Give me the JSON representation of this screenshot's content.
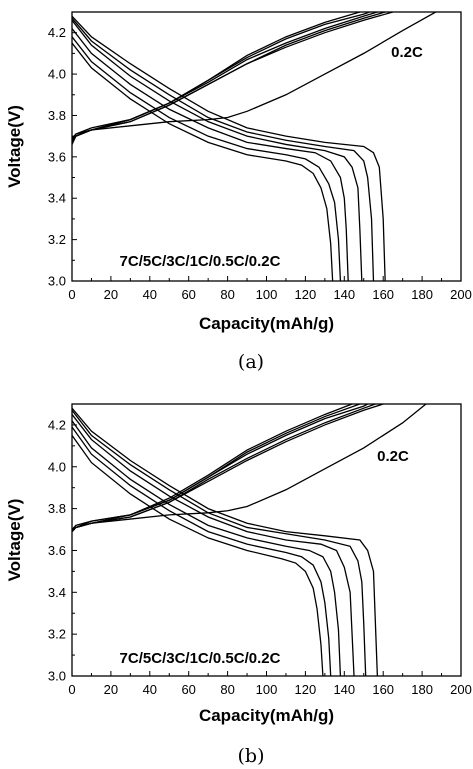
{
  "chart_data": [
    {
      "type": "line",
      "caption": "(a)",
      "xlabel": "Capacity(mAh/g)",
      "ylabel": "Voltage(V)",
      "xlim": [
        0,
        200
      ],
      "ylim": [
        3.0,
        4.3
      ],
      "xticks": [
        "0",
        "20",
        "40",
        "60",
        "80",
        "100",
        "120",
        "140",
        "160",
        "180",
        "200"
      ],
      "yticks": [
        "3.0",
        "3.2",
        "3.4",
        "3.6",
        "3.8",
        "4.0",
        "4.2"
      ],
      "annotations": {
        "rate_top": "0.2C",
        "rate_list": "7C/5C/3C/1C/0.5C/0.2C"
      },
      "charge_series": [
        {
          "x": [
            0,
            2,
            10,
            30,
            50,
            70,
            90,
            110,
            130,
            150,
            165
          ],
          "y": [
            3.66,
            3.7,
            3.73,
            3.77,
            3.85,
            3.95,
            4.05,
            4.13,
            4.2,
            4.26,
            4.3
          ]
        },
        {
          "x": [
            0,
            2,
            10,
            30,
            50,
            70,
            90,
            110,
            130,
            150,
            161
          ],
          "y": [
            3.67,
            3.7,
            3.73,
            3.77,
            3.85,
            3.95,
            4.05,
            4.14,
            4.21,
            4.27,
            4.3
          ]
        },
        {
          "x": [
            0,
            2,
            10,
            30,
            50,
            70,
            90,
            110,
            130,
            150,
            157
          ],
          "y": [
            3.67,
            3.7,
            3.73,
            3.78,
            3.86,
            3.96,
            4.07,
            4.15,
            4.22,
            4.28,
            4.3
          ]
        },
        {
          "x": [
            0,
            2,
            10,
            30,
            50,
            70,
            90,
            110,
            130,
            150,
            153
          ],
          "y": [
            3.68,
            3.7,
            3.73,
            3.78,
            3.86,
            3.97,
            4.08,
            4.17,
            4.24,
            4.29,
            4.3
          ]
        },
        {
          "x": [
            0,
            2,
            10,
            30,
            50,
            70,
            90,
            110,
            130,
            148
          ],
          "y": [
            3.68,
            3.71,
            3.74,
            3.78,
            3.86,
            3.97,
            4.09,
            4.18,
            4.25,
            4.3
          ]
        },
        {
          "x": [
            0,
            2,
            10,
            30,
            50,
            70,
            80,
            90,
            110,
            130,
            150,
            170,
            187
          ],
          "y": [
            3.69,
            3.71,
            3.73,
            3.75,
            3.77,
            3.78,
            3.79,
            3.82,
            3.9,
            4.0,
            4.1,
            4.21,
            4.3
          ]
        }
      ],
      "discharge_series": [
        {
          "x": [
            0,
            10,
            30,
            50,
            70,
            90,
            110,
            130,
            150,
            155,
            158,
            160,
            161
          ],
          "y": [
            4.28,
            4.18,
            4.05,
            3.93,
            3.82,
            3.74,
            3.7,
            3.67,
            3.65,
            3.62,
            3.55,
            3.3,
            3.0
          ]
        },
        {
          "x": [
            0,
            10,
            30,
            50,
            70,
            90,
            110,
            130,
            145,
            150,
            152,
            154,
            155
          ],
          "y": [
            4.27,
            4.16,
            4.02,
            3.9,
            3.79,
            3.72,
            3.68,
            3.65,
            3.63,
            3.58,
            3.5,
            3.3,
            3.0
          ]
        },
        {
          "x": [
            0,
            10,
            30,
            50,
            70,
            90,
            110,
            130,
            140,
            144,
            147,
            148,
            149
          ],
          "y": [
            4.26,
            4.14,
            3.99,
            3.87,
            3.77,
            3.7,
            3.66,
            3.63,
            3.6,
            3.55,
            3.45,
            3.25,
            3.0
          ]
        },
        {
          "x": [
            0,
            10,
            30,
            50,
            70,
            90,
            110,
            125,
            133,
            138,
            140,
            141,
            142
          ],
          "y": [
            4.22,
            4.1,
            3.95,
            3.83,
            3.74,
            3.67,
            3.64,
            3.62,
            3.58,
            3.5,
            3.4,
            3.25,
            3.0
          ]
        },
        {
          "x": [
            0,
            10,
            30,
            50,
            70,
            90,
            110,
            120,
            127,
            132,
            135,
            137,
            138
          ],
          "y": [
            4.18,
            4.06,
            3.91,
            3.79,
            3.7,
            3.64,
            3.61,
            3.59,
            3.55,
            3.47,
            3.38,
            3.2,
            3.0
          ]
        },
        {
          "x": [
            0,
            10,
            30,
            50,
            70,
            90,
            110,
            118,
            124,
            128,
            131,
            133,
            134
          ],
          "y": [
            4.15,
            4.03,
            3.88,
            3.76,
            3.67,
            3.61,
            3.58,
            3.56,
            3.52,
            3.45,
            3.35,
            3.18,
            3.0
          ]
        }
      ]
    },
    {
      "type": "line",
      "caption": "(b)",
      "xlabel": "Capacity(mAh/g)",
      "ylabel": "Voltage(V)",
      "xlim": [
        0,
        200
      ],
      "ylim": [
        3.0,
        4.3
      ],
      "xticks": [
        "0",
        "20",
        "40",
        "60",
        "80",
        "100",
        "120",
        "140",
        "160",
        "180",
        "200"
      ],
      "yticks": [
        "3.0",
        "3.2",
        "3.4",
        "3.6",
        "3.8",
        "4.0",
        "4.2"
      ],
      "annotations": {
        "rate_top": "0.2C",
        "rate_list": "7C/5C/3C/1C/0.5C/0.2C"
      },
      "charge_series": [
        {
          "x": [
            0,
            2,
            10,
            30,
            50,
            70,
            90,
            110,
            130,
            150,
            160
          ],
          "y": [
            3.69,
            3.71,
            3.73,
            3.76,
            3.83,
            3.93,
            4.03,
            4.12,
            4.2,
            4.27,
            4.3
          ]
        },
        {
          "x": [
            0,
            2,
            10,
            30,
            50,
            70,
            90,
            110,
            130,
            150,
            156
          ],
          "y": [
            3.69,
            3.71,
            3.73,
            3.76,
            3.83,
            3.94,
            4.04,
            4.13,
            4.21,
            4.28,
            4.3
          ]
        },
        {
          "x": [
            0,
            2,
            10,
            30,
            50,
            70,
            90,
            110,
            130,
            150,
            152
          ],
          "y": [
            3.7,
            3.71,
            3.73,
            3.77,
            3.84,
            3.95,
            4.06,
            4.15,
            4.23,
            4.29,
            4.3
          ]
        },
        {
          "x": [
            0,
            2,
            10,
            30,
            50,
            70,
            90,
            110,
            130,
            148
          ],
          "y": [
            3.7,
            3.71,
            3.74,
            3.77,
            3.84,
            3.95,
            4.07,
            4.16,
            4.24,
            4.3
          ]
        },
        {
          "x": [
            0,
            2,
            10,
            30,
            50,
            70,
            90,
            110,
            130,
            144
          ],
          "y": [
            3.7,
            3.72,
            3.74,
            3.77,
            3.85,
            3.96,
            4.08,
            4.17,
            4.25,
            4.3
          ]
        },
        {
          "x": [
            0,
            2,
            10,
            30,
            50,
            70,
            80,
            90,
            110,
            130,
            150,
            170,
            182
          ],
          "y": [
            3.7,
            3.71,
            3.73,
            3.75,
            3.77,
            3.78,
            3.79,
            3.81,
            3.89,
            3.99,
            4.09,
            4.21,
            4.3
          ]
        }
      ],
      "discharge_series": [
        {
          "x": [
            0,
            10,
            30,
            50,
            70,
            90,
            110,
            130,
            148,
            152,
            155,
            156,
            157
          ],
          "y": [
            4.28,
            4.17,
            4.03,
            3.91,
            3.8,
            3.73,
            3.69,
            3.67,
            3.65,
            3.6,
            3.5,
            3.25,
            3.0
          ]
        },
        {
          "x": [
            0,
            10,
            30,
            50,
            70,
            90,
            110,
            130,
            143,
            147,
            149,
            150,
            151
          ],
          "y": [
            4.27,
            4.15,
            4.01,
            3.89,
            3.78,
            3.71,
            3.68,
            3.65,
            3.62,
            3.55,
            3.45,
            3.25,
            3.0
          ]
        },
        {
          "x": [
            0,
            10,
            30,
            50,
            70,
            90,
            110,
            128,
            136,
            140,
            143,
            144,
            145
          ],
          "y": [
            4.25,
            4.13,
            3.98,
            3.86,
            3.76,
            3.69,
            3.65,
            3.63,
            3.6,
            3.52,
            3.4,
            3.2,
            3.0
          ]
        },
        {
          "x": [
            0,
            10,
            30,
            50,
            70,
            90,
            110,
            122,
            129,
            133,
            135,
            137,
            138
          ],
          "y": [
            4.22,
            4.09,
            3.94,
            3.82,
            3.72,
            3.66,
            3.62,
            3.6,
            3.57,
            3.5,
            3.4,
            3.22,
            3.0
          ]
        },
        {
          "x": [
            0,
            10,
            30,
            50,
            70,
            90,
            110,
            118,
            124,
            128,
            130,
            132,
            133
          ],
          "y": [
            4.19,
            4.06,
            3.91,
            3.79,
            3.69,
            3.63,
            3.59,
            3.57,
            3.53,
            3.45,
            3.35,
            3.18,
            3.0
          ]
        },
        {
          "x": [
            0,
            10,
            30,
            50,
            70,
            90,
            108,
            115,
            120,
            124,
            126,
            128,
            129
          ],
          "y": [
            4.15,
            4.02,
            3.87,
            3.75,
            3.66,
            3.6,
            3.56,
            3.54,
            3.5,
            3.42,
            3.32,
            3.15,
            3.0
          ]
        }
      ]
    }
  ]
}
